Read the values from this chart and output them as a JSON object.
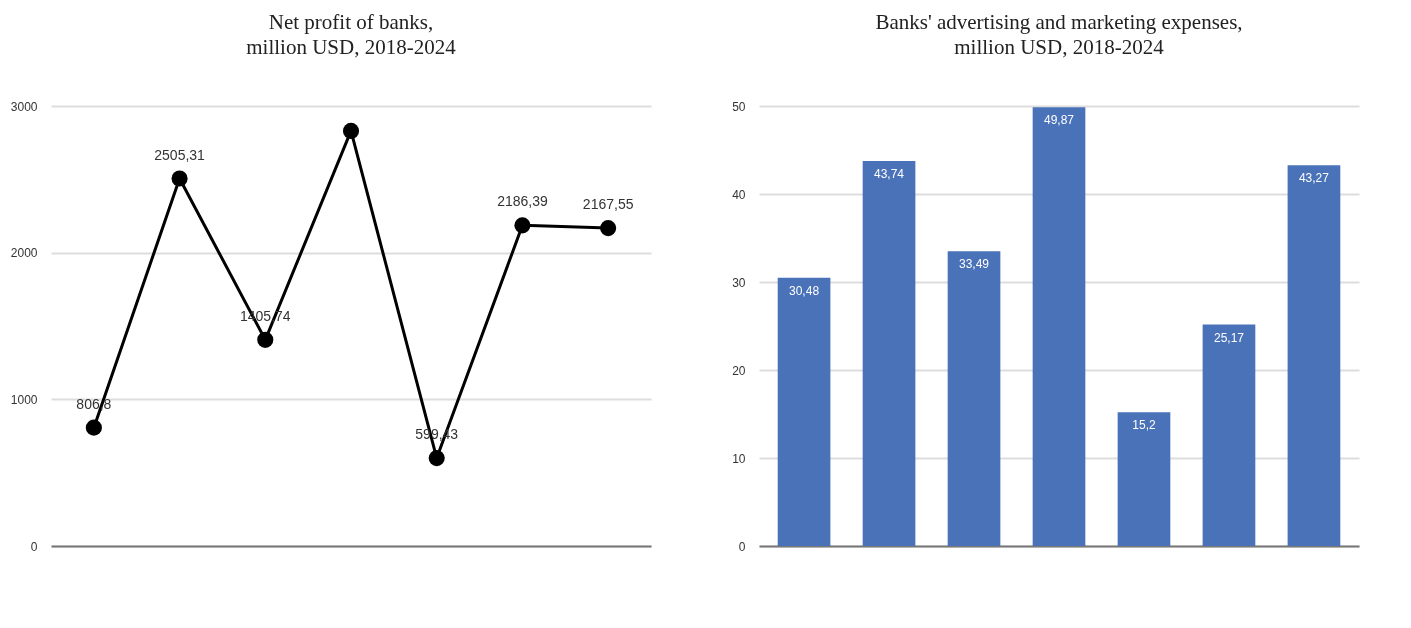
{
  "chart_data": [
    {
      "type": "line",
      "title": "Net profit of banks,\nmillion USD, 2018-2024",
      "categories": [
        null,
        null,
        null,
        null,
        null,
        null,
        null
      ],
      "values": [
        806.8,
        2505.31,
        1405.74,
        2830,
        599.43,
        2186.39,
        2167.55
      ],
      "value_labels": [
        "806,8",
        "2505,31",
        "1405,74",
        null,
        "599,43",
        "2186,39",
        "2167,55"
      ],
      "color": "#000000",
      "marker": "circle",
      "ylim": [
        0,
        3000
      ],
      "yticks": [
        0,
        1000,
        2000,
        3000
      ],
      "grid": "y",
      "tick_labels": "y"
    },
    {
      "type": "bar",
      "title": "Banks' advertising and marketing expenses,\nmillion USD, 2018-2024",
      "categories": [
        null,
        null,
        null,
        null,
        null,
        null,
        null
      ],
      "values": [
        30.48,
        43.74,
        33.49,
        49.87,
        15.2,
        25.17,
        43.27
      ],
      "value_labels": [
        "30,48",
        "43,74",
        "33,49",
        "49,87",
        "15,2",
        "25,17",
        "43,27"
      ],
      "color": "#4a72b8",
      "ylim": [
        0,
        50
      ],
      "yticks": [
        0,
        10,
        20,
        30,
        40,
        50
      ],
      "grid": "y",
      "tick_labels": "y"
    }
  ]
}
